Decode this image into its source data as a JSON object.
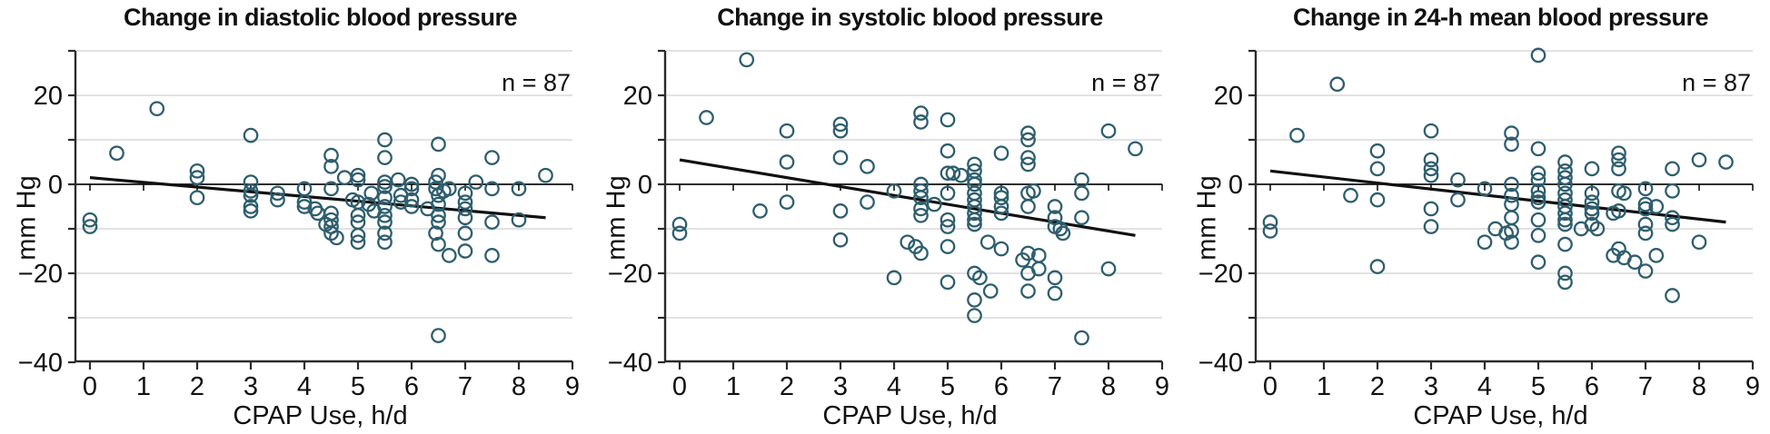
{
  "figure": {
    "background": "#ffffff",
    "point_color": "#2E5E6E",
    "grid_color": "#E2E2E2",
    "axis_color": "#2b2b2b",
    "zero_line_color": "#111111",
    "trend_color": "#111111"
  },
  "chart_data": [
    {
      "type": "scatter",
      "title": "Change in diastolic blood pressure",
      "n_label": "n = 87",
      "xlabel": "CPAP Use, h/d",
      "ylabel": "mm Hg",
      "xlim": [
        0,
        9
      ],
      "ylim": [
        -40,
        30
      ],
      "grid": "horizontal, every 10 mm Hg",
      "legend": "none",
      "x_ticks": [
        0,
        1,
        2,
        3,
        4,
        5,
        6,
        7,
        8,
        9
      ],
      "y_tick_values": [
        20,
        0,
        -20,
        -40
      ],
      "y_tick_labels": [
        "20",
        "0",
        "−20",
        "−40"
      ],
      "spine_tick_values": [
        30,
        20,
        10,
        0,
        -10,
        -20,
        -30,
        -40
      ],
      "gridline_values": [
        30,
        20,
        10,
        -10,
        -20,
        -30
      ],
      "trend": {
        "x1": 0,
        "y1": 1.5,
        "x2": 8.5,
        "y2": -7.5
      },
      "points": [
        [
          0,
          -8
        ],
        [
          0,
          -9.5
        ],
        [
          0.5,
          7
        ],
        [
          1.25,
          17
        ],
        [
          2,
          3
        ],
        [
          2,
          1.5
        ],
        [
          2,
          -3
        ],
        [
          3,
          11
        ],
        [
          3,
          0.5
        ],
        [
          3,
          -1.5
        ],
        [
          3,
          -2.5
        ],
        [
          3,
          -5
        ],
        [
          3,
          -6
        ],
        [
          3.5,
          -2
        ],
        [
          3.5,
          -3.5
        ],
        [
          4,
          -1
        ],
        [
          4,
          -4
        ],
        [
          4,
          -5
        ],
        [
          4.2,
          -5.5
        ],
        [
          4.25,
          -6.5
        ],
        [
          4.4,
          -9
        ],
        [
          4.5,
          6.5
        ],
        [
          4.5,
          4
        ],
        [
          4.5,
          -1
        ],
        [
          4.5,
          -6.5
        ],
        [
          4.5,
          -8
        ],
        [
          4.5,
          -9.5
        ],
        [
          4.5,
          -11
        ],
        [
          4.6,
          -12
        ],
        [
          4.75,
          1.5
        ],
        [
          4.9,
          -3.5
        ],
        [
          5,
          2
        ],
        [
          5,
          1
        ],
        [
          5,
          -4
        ],
        [
          5,
          -7
        ],
        [
          5,
          -8.5
        ],
        [
          5,
          -11.5
        ],
        [
          5,
          -13
        ],
        [
          5.2,
          -4.5
        ],
        [
          5.25,
          -2
        ],
        [
          5.3,
          -6
        ],
        [
          5.5,
          10
        ],
        [
          5.5,
          6
        ],
        [
          5.5,
          0.5
        ],
        [
          5.5,
          -0.5
        ],
        [
          5.5,
          -3
        ],
        [
          5.5,
          -5
        ],
        [
          5.5,
          -7
        ],
        [
          5.5,
          -8.5
        ],
        [
          5.5,
          -11
        ],
        [
          5.5,
          -13
        ],
        [
          5.75,
          1
        ],
        [
          5.8,
          -2.5
        ],
        [
          5.8,
          -4
        ],
        [
          6,
          0
        ],
        [
          6,
          -1
        ],
        [
          6,
          -3.5
        ],
        [
          6,
          -5
        ],
        [
          6.3,
          -5.5
        ],
        [
          6.45,
          0.5
        ],
        [
          6.45,
          -1
        ],
        [
          6.5,
          9
        ],
        [
          6.5,
          2
        ],
        [
          6.5,
          -2.5
        ],
        [
          6.5,
          -4.5
        ],
        [
          6.5,
          -7
        ],
        [
          6.5,
          -8.5
        ],
        [
          6.45,
          -11
        ],
        [
          6.5,
          -13.5
        ],
        [
          6.5,
          -34
        ],
        [
          6.6,
          -1.5
        ],
        [
          6.7,
          -1
        ],
        [
          6.7,
          -16
        ],
        [
          7,
          -2
        ],
        [
          7,
          -4
        ],
        [
          7,
          -5.5
        ],
        [
          7,
          -7.5
        ],
        [
          7,
          -11
        ],
        [
          7,
          -15
        ],
        [
          7.2,
          0.5
        ],
        [
          7.5,
          6
        ],
        [
          7.5,
          -1
        ],
        [
          7.5,
          -8.5
        ],
        [
          7.5,
          -16
        ],
        [
          8,
          -1
        ],
        [
          8,
          -8
        ],
        [
          8.5,
          2
        ]
      ]
    },
    {
      "type": "scatter",
      "title": "Change in systolic blood pressure",
      "n_label": "n = 87",
      "xlabel": "CPAP Use, h/d",
      "ylabel": "mm Hg",
      "xlim": [
        0,
        9
      ],
      "ylim": [
        -40,
        30
      ],
      "grid": "horizontal, every 10 mm Hg",
      "legend": "none",
      "x_ticks": [
        0,
        1,
        2,
        3,
        4,
        5,
        6,
        7,
        8,
        9
      ],
      "y_tick_values": [
        20,
        0,
        -20,
        -40
      ],
      "y_tick_labels": [
        "20",
        "0",
        "−20",
        "−40"
      ],
      "spine_tick_values": [
        30,
        20,
        10,
        0,
        -10,
        -20,
        -30,
        -40
      ],
      "gridline_values": [
        30,
        20,
        10,
        -10,
        -20,
        -30
      ],
      "trend": {
        "x1": 0,
        "y1": 5.5,
        "x2": 8.5,
        "y2": -11.5
      },
      "points": [
        [
          0,
          -9
        ],
        [
          0,
          -11
        ],
        [
          0.5,
          15
        ],
        [
          1.25,
          28
        ],
        [
          1.5,
          -6
        ],
        [
          2,
          12
        ],
        [
          2,
          5
        ],
        [
          2,
          -4
        ],
        [
          3,
          13.5
        ],
        [
          3,
          12
        ],
        [
          3,
          6
        ],
        [
          3,
          -6
        ],
        [
          3,
          -12.5
        ],
        [
          3.5,
          4
        ],
        [
          3.5,
          -4
        ],
        [
          4,
          -1.5
        ],
        [
          4,
          -21
        ],
        [
          4.25,
          -13
        ],
        [
          4.4,
          -14
        ],
        [
          4.5,
          16
        ],
        [
          4.5,
          14
        ],
        [
          4.5,
          0
        ],
        [
          4.5,
          -1.5
        ],
        [
          4.5,
          -3
        ],
        [
          4.5,
          -5.5
        ],
        [
          4.5,
          -7
        ],
        [
          4.5,
          -15.5
        ],
        [
          4.75,
          -4.5
        ],
        [
          5,
          14.5
        ],
        [
          5,
          7.5
        ],
        [
          5,
          2.5
        ],
        [
          5.1,
          2.5
        ],
        [
          5,
          -2
        ],
        [
          5,
          -8
        ],
        [
          5,
          -9.5
        ],
        [
          5,
          -14
        ],
        [
          5,
          -22
        ],
        [
          5.25,
          2
        ],
        [
          5.5,
          4.5
        ],
        [
          5.5,
          3
        ],
        [
          5.5,
          1
        ],
        [
          5.5,
          0
        ],
        [
          5.5,
          -2
        ],
        [
          5.5,
          -3.5
        ],
        [
          5.5,
          -5
        ],
        [
          5.5,
          -6.5
        ],
        [
          5.5,
          -8
        ],
        [
          5.5,
          -9
        ],
        [
          5.5,
          -20
        ],
        [
          5.6,
          -21
        ],
        [
          5.5,
          -26
        ],
        [
          5.5,
          -29.5
        ],
        [
          5.75,
          -13
        ],
        [
          5.8,
          -24
        ],
        [
          6,
          7
        ],
        [
          6,
          -2
        ],
        [
          6,
          -3
        ],
        [
          6,
          -5
        ],
        [
          6,
          -6.5
        ],
        [
          6,
          -14.5
        ],
        [
          6.5,
          11.5
        ],
        [
          6.5,
          10
        ],
        [
          6.5,
          6
        ],
        [
          6.5,
          4.5
        ],
        [
          6.5,
          -2
        ],
        [
          6.6,
          -1.5
        ],
        [
          6.5,
          -5
        ],
        [
          6.4,
          -17
        ],
        [
          6.5,
          -15.5
        ],
        [
          6.7,
          -16
        ],
        [
          6.7,
          -19
        ],
        [
          6.5,
          -20
        ],
        [
          6.5,
          -24
        ],
        [
          7,
          -5
        ],
        [
          7,
          -7.5
        ],
        [
          7,
          -9.5
        ],
        [
          7.1,
          -10
        ],
        [
          7.15,
          -11
        ],
        [
          7,
          -21
        ],
        [
          7,
          -24.5
        ],
        [
          7.5,
          1
        ],
        [
          7.5,
          -2
        ],
        [
          7.5,
          -7.5
        ],
        [
          7.5,
          -34.5
        ],
        [
          8,
          12
        ],
        [
          8,
          -19
        ],
        [
          8.5,
          8
        ]
      ]
    },
    {
      "type": "scatter",
      "title": "Change in 24-h mean blood pressure",
      "n_label": "n = 87",
      "xlabel": "CPAP Use, h/d",
      "ylabel": "mm Hg",
      "xlim": [
        0,
        9
      ],
      "ylim": [
        -40,
        30
      ],
      "grid": "horizontal, every 10 mm Hg",
      "legend": "none",
      "x_ticks": [
        0,
        1,
        2,
        3,
        4,
        5,
        6,
        7,
        8,
        9
      ],
      "y_tick_values": [
        20,
        0,
        -20,
        -40
      ],
      "y_tick_labels": [
        "20",
        "0",
        "−20",
        "−40"
      ],
      "spine_tick_values": [
        30,
        20,
        10,
        0,
        -10,
        -20,
        -30,
        -40
      ],
      "gridline_values": [
        30,
        20,
        10,
        -10,
        -20,
        -30
      ],
      "trend": {
        "x1": 0,
        "y1": 3,
        "x2": 8.5,
        "y2": -8.5
      },
      "points": [
        [
          0,
          -8.5
        ],
        [
          0,
          -10.5
        ],
        [
          0.5,
          11
        ],
        [
          1.25,
          22.5
        ],
        [
          1.5,
          -2.5
        ],
        [
          2,
          7.5
        ],
        [
          2,
          3.5
        ],
        [
          2,
          -3.5
        ],
        [
          2,
          -18.5
        ],
        [
          3,
          12
        ],
        [
          3,
          5.5
        ],
        [
          3,
          3.5
        ],
        [
          3,
          2
        ],
        [
          3,
          -5.5
        ],
        [
          3,
          -9.5
        ],
        [
          3.5,
          1
        ],
        [
          3.5,
          -3.5
        ],
        [
          4,
          -1
        ],
        [
          4,
          -13
        ],
        [
          4.2,
          -10
        ],
        [
          4.4,
          -11
        ],
        [
          4.5,
          11.5
        ],
        [
          4.5,
          9
        ],
        [
          4.5,
          0
        ],
        [
          4.5,
          -2.5
        ],
        [
          4.5,
          -4.5
        ],
        [
          4.5,
          -7.5
        ],
        [
          4.5,
          -10.5
        ],
        [
          4.5,
          -13
        ],
        [
          5,
          29
        ],
        [
          5,
          8
        ],
        [
          5,
          2.5
        ],
        [
          5,
          1
        ],
        [
          5,
          -1.5
        ],
        [
          5,
          -3
        ],
        [
          5,
          -4
        ],
        [
          5,
          -8
        ],
        [
          5,
          -11.5
        ],
        [
          5,
          -17.5
        ],
        [
          5.5,
          5
        ],
        [
          5.5,
          3
        ],
        [
          5.5,
          1.5
        ],
        [
          5.5,
          0
        ],
        [
          5.5,
          -2
        ],
        [
          5.5,
          -3.5
        ],
        [
          5.5,
          -5
        ],
        [
          5.5,
          -6.5
        ],
        [
          5.5,
          -8
        ],
        [
          5.5,
          -9
        ],
        [
          5.5,
          -13.5
        ],
        [
          5.5,
          -20
        ],
        [
          5.5,
          -22
        ],
        [
          5.8,
          -10
        ],
        [
          6,
          3.5
        ],
        [
          6,
          -2
        ],
        [
          6,
          -4
        ],
        [
          6,
          -5.5
        ],
        [
          6,
          -6.5
        ],
        [
          6,
          -9
        ],
        [
          6.1,
          -10
        ],
        [
          6.5,
          7
        ],
        [
          6.5,
          5.5
        ],
        [
          6.5,
          3.5
        ],
        [
          6.5,
          -1.5
        ],
        [
          6.6,
          -2
        ],
        [
          6.5,
          -6
        ],
        [
          6.4,
          -6.5
        ],
        [
          6.5,
          -14.5
        ],
        [
          6.4,
          -16
        ],
        [
          6.6,
          -16.5
        ],
        [
          6.8,
          -17.5
        ],
        [
          7,
          -1
        ],
        [
          7,
          -4.5
        ],
        [
          7,
          -5.5
        ],
        [
          7.2,
          -5
        ],
        [
          7,
          -9
        ],
        [
          7,
          -11
        ],
        [
          7,
          -19.5
        ],
        [
          7.2,
          -16
        ],
        [
          7.5,
          3.5
        ],
        [
          7.5,
          -1.5
        ],
        [
          7.5,
          -7.5
        ],
        [
          7.5,
          -9
        ],
        [
          7.5,
          -25
        ],
        [
          8,
          5.5
        ],
        [
          8,
          -13
        ],
        [
          8.5,
          5
        ]
      ]
    }
  ]
}
